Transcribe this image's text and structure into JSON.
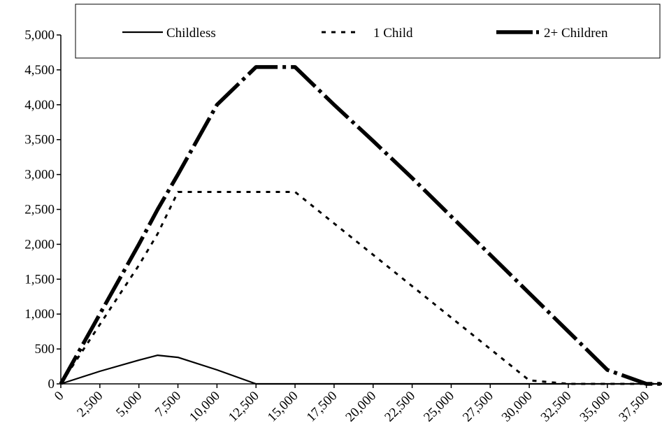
{
  "chart_data": {
    "type": "line",
    "x": [
      0,
      2500,
      5000,
      6200,
      7500,
      10000,
      12500,
      15000,
      17500,
      20000,
      22500,
      25000,
      27500,
      30000,
      32500,
      35000,
      37500,
      38500
    ],
    "series": [
      {
        "name": "Childless",
        "values": [
          0,
          180,
          340,
          410,
          380,
          200,
          0,
          0,
          0,
          0,
          0,
          0,
          0,
          0,
          0,
          0,
          0,
          0
        ],
        "style": "solid",
        "color": "#000000"
      },
      {
        "name": "1 Child",
        "values": [
          0,
          850,
          1700,
          2150,
          2750,
          2750,
          2750,
          2750,
          2300,
          1850,
          1400,
          950,
          500,
          50,
          0,
          0,
          0,
          0
        ],
        "style": "dotted",
        "color": "#000000"
      },
      {
        "name": "2+ Children",
        "values": [
          0,
          1000,
          2000,
          2500,
          3000,
          4000,
          4540,
          4540,
          4000,
          3480,
          2950,
          2400,
          1850,
          1300,
          750,
          200,
          0,
          0
        ],
        "style": "dash-dot",
        "color": "#000000"
      }
    ],
    "ylim": [
      0,
      5000
    ],
    "yticks": [
      "0",
      "500",
      "1,000",
      "1,500",
      "2,000",
      "2,500",
      "3,000",
      "3,500",
      "4,000",
      "4,500",
      "5,000"
    ],
    "xlim": [
      0,
      38500
    ],
    "xticks": [
      "0",
      "2,500",
      "5,000",
      "7,500",
      "10,000",
      "12,500",
      "15,000",
      "17,500",
      "20,000",
      "22,500",
      "25,000",
      "27,500",
      "30,000",
      "32,500",
      "35,000",
      "37,500"
    ],
    "legend_position": "top",
    "grid": false
  }
}
